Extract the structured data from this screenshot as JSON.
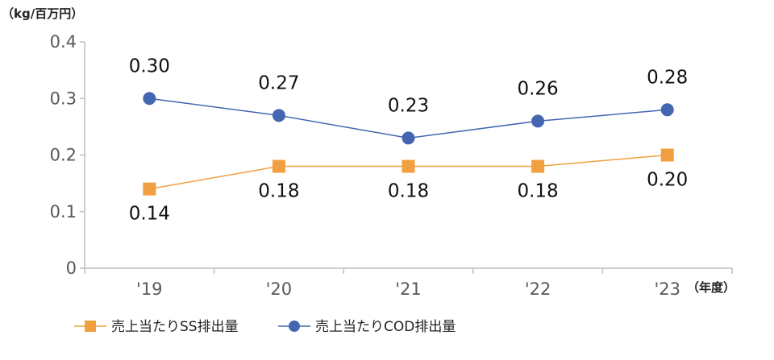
{
  "chart_data": {
    "type": "line",
    "y_unit_label": "（kg/百万円）",
    "x_unit_label": "（年度）",
    "categories": [
      "'19",
      "'20",
      "'21",
      "'22",
      "'23"
    ],
    "ylim": [
      0,
      0.4
    ],
    "y_ticks": [
      {
        "value": 0,
        "label": "0"
      },
      {
        "value": 0.1,
        "label": "0.1"
      },
      {
        "value": 0.2,
        "label": "0.2"
      },
      {
        "value": 0.3,
        "label": "0.3"
      },
      {
        "value": 0.4,
        "label": "0.4"
      }
    ],
    "grid": false,
    "legend_position": "bottom-left",
    "series": [
      {
        "name": "売上当たりSS排出量",
        "marker": "square",
        "color": "#F0A040",
        "values": [
          0.14,
          0.18,
          0.18,
          0.18,
          0.2
        ],
        "labels": [
          "0.14",
          "0.18",
          "0.18",
          "0.18",
          "0.20"
        ],
        "label_position": "below"
      },
      {
        "name": "売上当たりCOD排出量",
        "marker": "circle",
        "color": "#4466B0",
        "values": [
          0.3,
          0.27,
          0.23,
          0.26,
          0.28
        ],
        "labels": [
          "0.30",
          "0.27",
          "0.23",
          "0.26",
          "0.28"
        ],
        "label_position": "above"
      }
    ]
  }
}
